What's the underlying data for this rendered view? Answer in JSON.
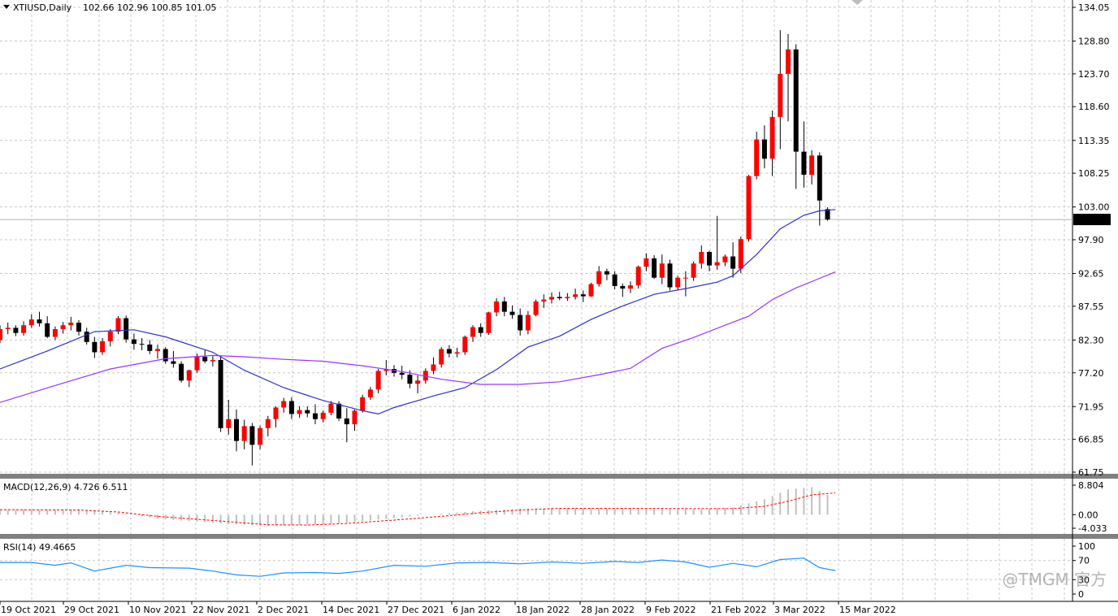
{
  "header": {
    "symbol": "XTIUSD,Daily",
    "ohlc": "102.66 102.96 100.85 101.05"
  },
  "indicators": {
    "macd_label": "MACD(12,26,9) 4.726 6.511",
    "rsi_label": "RSI(14) 49.4665"
  },
  "watermark": "@TMGM 官方",
  "colors": {
    "bull": "#ff0000",
    "bear": "#000000",
    "ma_fast": "#3030c8",
    "ma_slow": "#9933ff",
    "macd_signal": "#ff0000",
    "macd_hist": "#c0c0c0",
    "rsi": "#1e90ff",
    "grid": "#c8c8c8"
  },
  "chart_data": {
    "type": "candlestick",
    "price_axis": {
      "ticks": [
        "134.05",
        "128.80",
        "123.70",
        "118.60",
        "113.35",
        "108.25",
        "103.00",
        "97.90",
        "92.65",
        "87.55",
        "82.30",
        "77.20",
        "71.95",
        "66.85",
        "61.75"
      ],
      "range": [
        61.75,
        134.05
      ],
      "current_price": "101.05"
    },
    "macd_axis": {
      "ticks": [
        "8.804",
        "0.00",
        "-4.033"
      ],
      "range": [
        -4.033,
        8.804
      ]
    },
    "rsi_axis": {
      "ticks": [
        "100",
        "70",
        "30",
        "0"
      ],
      "range": [
        0,
        100
      ]
    },
    "date_labels": [
      "19 Oct 2021",
      "29 Oct 2021",
      "10 Nov 2021",
      "22 Nov 2021",
      "2 Dec 2021",
      "14 Dec 2021",
      "27 Dec 2021",
      "6 Jan 2022",
      "18 Jan 2022",
      "28 Jan 2022",
      "9 Feb 2022",
      "21 Feb 2022",
      "3 Mar 2022",
      "15 Mar 2022"
    ],
    "candles": [
      [
        82.3,
        84.6,
        81.8,
        84.0
      ],
      [
        84.0,
        85.0,
        83.2,
        84.2
      ],
      [
        84.2,
        84.6,
        82.9,
        83.4
      ],
      [
        83.4,
        85.2,
        83.0,
        84.6
      ],
      [
        84.6,
        86.3,
        84.2,
        85.5
      ],
      [
        85.5,
        86.7,
        84.4,
        84.9
      ],
      [
        84.9,
        86.0,
        82.6,
        82.8
      ],
      [
        82.8,
        84.4,
        82.3,
        84.0
      ],
      [
        84.0,
        85.1,
        83.3,
        84.6
      ],
      [
        84.6,
        85.9,
        83.8,
        85.0
      ],
      [
        85.0,
        85.4,
        83.0,
        83.6
      ],
      [
        83.6,
        84.2,
        81.6,
        82.0
      ],
      [
        82.0,
        82.8,
        79.5,
        80.4
      ],
      [
        80.4,
        82.6,
        80.0,
        82.1
      ],
      [
        82.1,
        84.0,
        81.3,
        83.6
      ],
      [
        83.6,
        86.0,
        83.2,
        85.7
      ],
      [
        85.7,
        86.1,
        81.9,
        82.4
      ],
      [
        82.4,
        83.3,
        80.8,
        81.7
      ],
      [
        81.7,
        82.6,
        80.7,
        81.6
      ],
      [
        81.6,
        82.3,
        80.1,
        80.6
      ],
      [
        80.6,
        81.6,
        79.4,
        80.9
      ],
      [
        80.9,
        81.2,
        78.6,
        79.0
      ],
      [
        79.0,
        80.6,
        78.0,
        78.6
      ],
      [
        78.6,
        79.0,
        75.7,
        76.0
      ],
      [
        76.0,
        77.7,
        75.0,
        77.6
      ],
      [
        77.6,
        80.2,
        77.2,
        79.7
      ],
      [
        79.7,
        80.7,
        78.7,
        79.0
      ],
      [
        79.0,
        79.8,
        78.2,
        79.2
      ],
      [
        79.2,
        79.8,
        68.0,
        68.6
      ],
      [
        68.6,
        73.0,
        67.6,
        70.0
      ],
      [
        70.0,
        71.5,
        65.0,
        66.6
      ],
      [
        66.6,
        69.9,
        65.3,
        68.9
      ],
      [
        68.9,
        69.4,
        62.8,
        66.0
      ],
      [
        66.0,
        69.0,
        65.3,
        68.6
      ],
      [
        68.6,
        70.5,
        67.3,
        70.0
      ],
      [
        70.0,
        72.0,
        68.7,
        71.8
      ],
      [
        71.8,
        73.3,
        71.0,
        72.8
      ],
      [
        72.8,
        73.4,
        70.0,
        70.8
      ],
      [
        70.8,
        72.0,
        70.2,
        71.4
      ],
      [
        71.4,
        72.0,
        70.3,
        70.9
      ],
      [
        70.9,
        72.3,
        69.2,
        70.0
      ],
      [
        70.0,
        71.3,
        69.5,
        71.0
      ],
      [
        71.0,
        72.8,
        70.6,
        72.4
      ],
      [
        72.4,
        72.8,
        69.7,
        70.1
      ],
      [
        70.1,
        71.7,
        66.4,
        69.2
      ],
      [
        69.2,
        71.5,
        68.2,
        71.3
      ],
      [
        71.3,
        73.8,
        71.0,
        73.4
      ],
      [
        73.4,
        75.0,
        73.0,
        74.6
      ],
      [
        74.6,
        77.8,
        74.0,
        77.5
      ],
      [
        77.5,
        79.2,
        76.8,
        77.8
      ],
      [
        77.8,
        78.4,
        76.6,
        77.2
      ],
      [
        77.2,
        78.3,
        76.2,
        76.9
      ],
      [
        76.9,
        77.6,
        74.8,
        75.5
      ],
      [
        75.5,
        76.8,
        74.0,
        76.0
      ],
      [
        76.0,
        77.9,
        75.5,
        77.5
      ],
      [
        77.5,
        79.6,
        77.0,
        78.5
      ],
      [
        78.5,
        81.2,
        78.0,
        80.9
      ],
      [
        80.9,
        81.5,
        79.6,
        80.2
      ],
      [
        80.2,
        81.1,
        79.6,
        80.4
      ],
      [
        80.4,
        83.0,
        80.0,
        82.8
      ],
      [
        82.8,
        84.6,
        82.0,
        84.3
      ],
      [
        84.3,
        84.9,
        82.8,
        83.4
      ],
      [
        83.4,
        86.7,
        83.1,
        86.6
      ],
      [
        86.6,
        88.8,
        86.0,
        88.3
      ],
      [
        88.3,
        89.0,
        86.0,
        86.7
      ],
      [
        86.7,
        87.7,
        85.6,
        86.2
      ],
      [
        86.2,
        87.2,
        83.0,
        83.8
      ],
      [
        83.8,
        86.8,
        83.2,
        86.2
      ],
      [
        86.2,
        88.6,
        86.0,
        88.3
      ],
      [
        88.3,
        89.4,
        87.3,
        88.6
      ],
      [
        88.6,
        89.7,
        88.0,
        89.0
      ],
      [
        89.0,
        89.8,
        88.5,
        88.8
      ],
      [
        88.8,
        89.6,
        88.4,
        89.0
      ],
      [
        89.0,
        90.3,
        88.6,
        89.4
      ],
      [
        89.4,
        90.0,
        88.2,
        89.1
      ],
      [
        89.1,
        91.2,
        89.0,
        91.0
      ],
      [
        91.0,
        93.8,
        90.6,
        93.0
      ],
      [
        93.0,
        93.4,
        91.6,
        92.5
      ],
      [
        92.5,
        93.0,
        90.2,
        90.7
      ],
      [
        90.7,
        91.1,
        89.0,
        90.3
      ],
      [
        90.3,
        91.4,
        89.6,
        90.8
      ],
      [
        90.8,
        93.9,
        90.3,
        93.7
      ],
      [
        93.7,
        95.8,
        93.0,
        95.0
      ],
      [
        95.0,
        95.5,
        91.8,
        92.0
      ],
      [
        92.0,
        95.6,
        91.0,
        94.2
      ],
      [
        94.2,
        94.8,
        90.0,
        90.5
      ],
      [
        90.5,
        92.3,
        90.0,
        92.0
      ],
      [
        92.0,
        93.0,
        89.1,
        92.0
      ],
      [
        92.0,
        94.5,
        91.5,
        94.2
      ],
      [
        94.2,
        97.0,
        93.4,
        96.0
      ],
      [
        96.0,
        96.2,
        93.0,
        93.9
      ],
      [
        93.9,
        101.6,
        93.2,
        94.4
      ],
      [
        94.4,
        95.6,
        93.8,
        95.3
      ],
      [
        95.3,
        97.5,
        92.0,
        93.4
      ],
      [
        93.4,
        98.4,
        92.7,
        98.0
      ],
      [
        98.0,
        108.0,
        97.6,
        107.8
      ],
      [
        107.8,
        114.7,
        107.3,
        113.5
      ],
      [
        113.5,
        115.7,
        109.0,
        110.5
      ],
      [
        110.5,
        118.0,
        107.8,
        117.0
      ],
      [
        117.0,
        130.5,
        112.0,
        123.7
      ],
      [
        123.7,
        129.9,
        116.3,
        127.5
      ],
      [
        127.5,
        128.3,
        105.8,
        111.6
      ],
      [
        111.6,
        116.3,
        106.0,
        108.0
      ],
      [
        108.0,
        111.8,
        106.5,
        111.0
      ],
      [
        111.0,
        111.5,
        100.1,
        104.0
      ],
      [
        102.66,
        102.96,
        100.85,
        101.05
      ]
    ],
    "ma_fast": [
      [
        0,
        77.8
      ],
      [
        6,
        80.6
      ],
      [
        12,
        83.6
      ],
      [
        17,
        83.9
      ],
      [
        21,
        82.8
      ],
      [
        27,
        80.4
      ],
      [
        31,
        77.6
      ],
      [
        36,
        74.9
      ],
      [
        41,
        72.9
      ],
      [
        46,
        71.3
      ],
      [
        48,
        70.8
      ],
      [
        50,
        71.8
      ],
      [
        55,
        73.6
      ],
      [
        59,
        74.9
      ],
      [
        63,
        77.7
      ],
      [
        67,
        81.2
      ],
      [
        71,
        82.9
      ],
      [
        75,
        85.5
      ],
      [
        79,
        87.6
      ],
      [
        83,
        89.4
      ],
      [
        87,
        90.3
      ],
      [
        91,
        91.3
      ],
      [
        93,
        92.3
      ],
      [
        96,
        95.6
      ],
      [
        99,
        99.6
      ],
      [
        102,
        101.7
      ],
      [
        104,
        102.4
      ],
      [
        106,
        102.6
      ]
    ],
    "ma_slow": [
      [
        0,
        72.6
      ],
      [
        8,
        75.6
      ],
      [
        14,
        77.8
      ],
      [
        21,
        79.4
      ],
      [
        27,
        79.9
      ],
      [
        31,
        79.7
      ],
      [
        36,
        79.3
      ],
      [
        41,
        79.0
      ],
      [
        46,
        78.3
      ],
      [
        51,
        77.4
      ],
      [
        56,
        76.2
      ],
      [
        61,
        75.4
      ],
      [
        66,
        75.4
      ],
      [
        71,
        75.8
      ],
      [
        76,
        76.9
      ],
      [
        80,
        77.9
      ],
      [
        84,
        81.0
      ],
      [
        88,
        82.7
      ],
      [
        92,
        84.6
      ],
      [
        95,
        86.0
      ],
      [
        98,
        88.6
      ],
      [
        101,
        90.4
      ],
      [
        104,
        91.9
      ],
      [
        106,
        92.9
      ]
    ],
    "macd_signal": [
      [
        0,
        1.5
      ],
      [
        10,
        1.4
      ],
      [
        15,
        0.8
      ],
      [
        20,
        -0.5
      ],
      [
        28,
        -1.9
      ],
      [
        34,
        -3.0
      ],
      [
        39,
        -3.1
      ],
      [
        44,
        -2.6
      ],
      [
        50,
        -1.6
      ],
      [
        56,
        -0.5
      ],
      [
        61,
        0.6
      ],
      [
        66,
        1.4
      ],
      [
        71,
        1.9
      ],
      [
        80,
        1.9
      ],
      [
        89,
        1.8
      ],
      [
        93,
        1.8
      ],
      [
        97,
        2.5
      ],
      [
        100,
        4.0
      ],
      [
        103,
        5.9
      ],
      [
        106,
        6.5
      ]
    ],
    "macd_hist": [
      [
        0,
        1.5
      ],
      [
        10,
        1.5
      ],
      [
        15,
        0.6
      ],
      [
        20,
        -1.2
      ],
      [
        28,
        -2.6
      ],
      [
        34,
        -3.4
      ],
      [
        39,
        -3.0
      ],
      [
        44,
        -2.4
      ],
      [
        50,
        -1.0
      ],
      [
        56,
        0.3
      ],
      [
        61,
        1.2
      ],
      [
        66,
        1.8
      ],
      [
        71,
        2.0
      ],
      [
        80,
        1.9
      ],
      [
        89,
        1.6
      ],
      [
        93,
        2.2
      ],
      [
        97,
        4.6
      ],
      [
        100,
        7.5
      ],
      [
        103,
        8.2
      ],
      [
        106,
        4.7
      ]
    ],
    "rsi": [
      [
        0,
        66
      ],
      [
        4,
        66
      ],
      [
        7,
        60
      ],
      [
        9,
        65
      ],
      [
        12,
        48
      ],
      [
        16,
        60
      ],
      [
        19,
        55
      ],
      [
        24,
        54
      ],
      [
        27,
        48
      ],
      [
        30,
        40
      ],
      [
        33,
        37
      ],
      [
        36,
        44
      ],
      [
        40,
        45
      ],
      [
        43,
        43
      ],
      [
        46,
        48
      ],
      [
        50,
        60
      ],
      [
        54,
        58
      ],
      [
        58,
        65
      ],
      [
        62,
        66
      ],
      [
        66,
        63
      ],
      [
        70,
        67
      ],
      [
        74,
        64
      ],
      [
        78,
        68
      ],
      [
        81,
        66
      ],
      [
        84,
        71
      ],
      [
        87,
        67
      ],
      [
        90,
        56
      ],
      [
        93,
        64
      ],
      [
        96,
        57
      ],
      [
        99,
        72
      ],
      [
        102,
        75
      ],
      [
        104,
        55
      ],
      [
        106,
        49
      ]
    ]
  }
}
